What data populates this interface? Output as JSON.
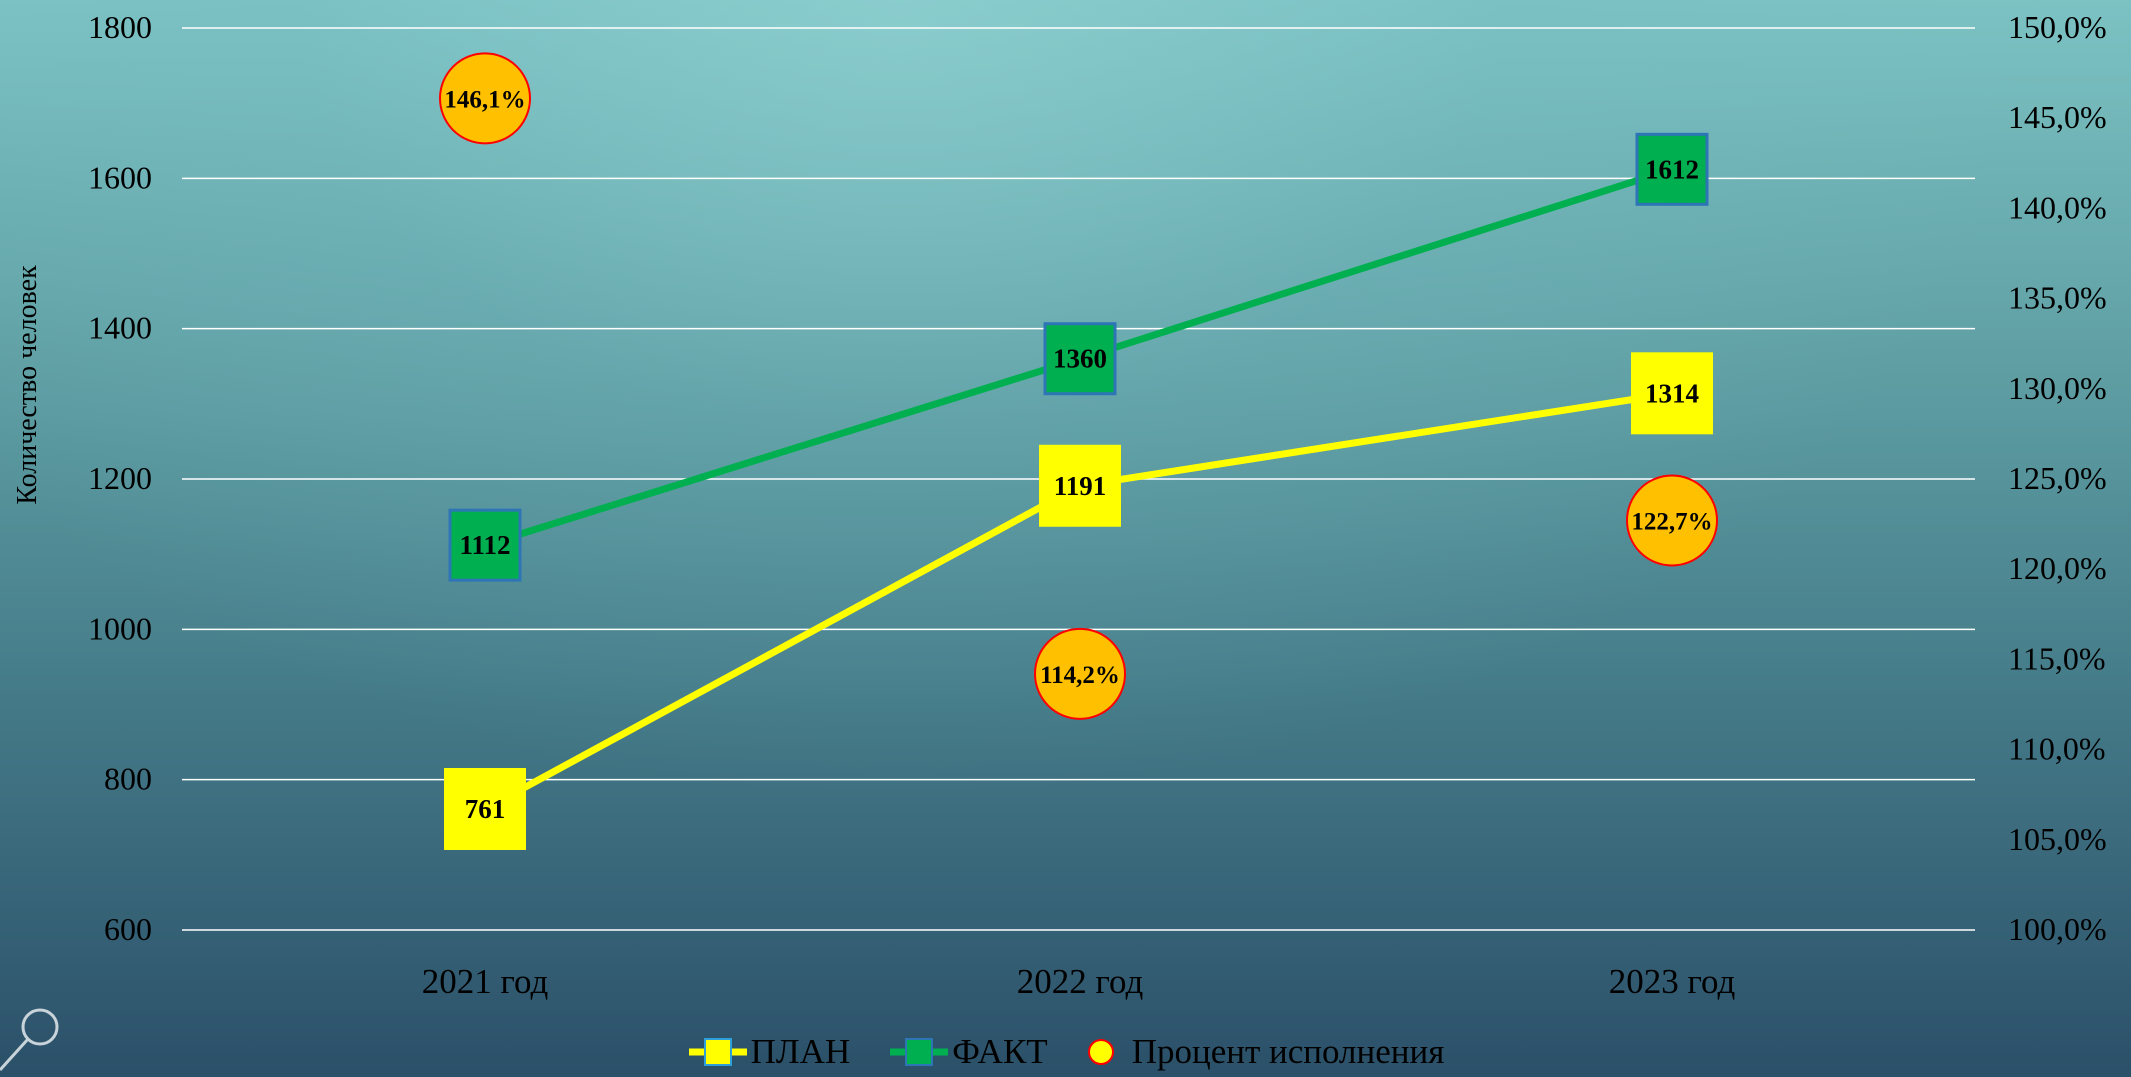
{
  "chart_data": {
    "type": "line",
    "categories": [
      "2021 год",
      "2022 год",
      "2023 год"
    ],
    "ylabel": "Количество человек",
    "y_ticks": [
      "600",
      "800",
      "1000",
      "1200",
      "1400",
      "1600",
      "1800"
    ],
    "ylim": [
      600,
      1800
    ],
    "y2_ticks": [
      "100,0%",
      "105,0%",
      "110,0%",
      "115,0%",
      "120,0%",
      "125,0%",
      "130,0%",
      "135,0%",
      "140,0%",
      "145,0%",
      "150,0%"
    ],
    "y2lim": [
      100,
      150
    ],
    "grid": true,
    "legend_position": "bottom",
    "series": [
      {
        "name": "ПЛАН",
        "axis": "left",
        "values": [
          761,
          1191,
          1314
        ],
        "labels": [
          "761",
          "1191",
          "1314"
        ],
        "line_color": "#ffff00",
        "marker_color": "#ffff00"
      },
      {
        "name": "ФАКТ",
        "axis": "left",
        "values": [
          1112,
          1360,
          1612
        ],
        "labels": [
          "1112",
          "1360",
          "1612"
        ],
        "line_color": "#00b050",
        "marker_color": "#00b050",
        "marker_border": "#2e75b6"
      },
      {
        "name": "Процент исполнения",
        "axis": "right",
        "style": "markers",
        "values": [
          146.1,
          114.2,
          122.7
        ],
        "labels": [
          "146,1%",
          "114,2%",
          "122,7%"
        ],
        "marker_color": "#ffc000",
        "marker_border": "#ff0000"
      }
    ]
  },
  "icons": {
    "magnifier": "magnifier-icon"
  }
}
